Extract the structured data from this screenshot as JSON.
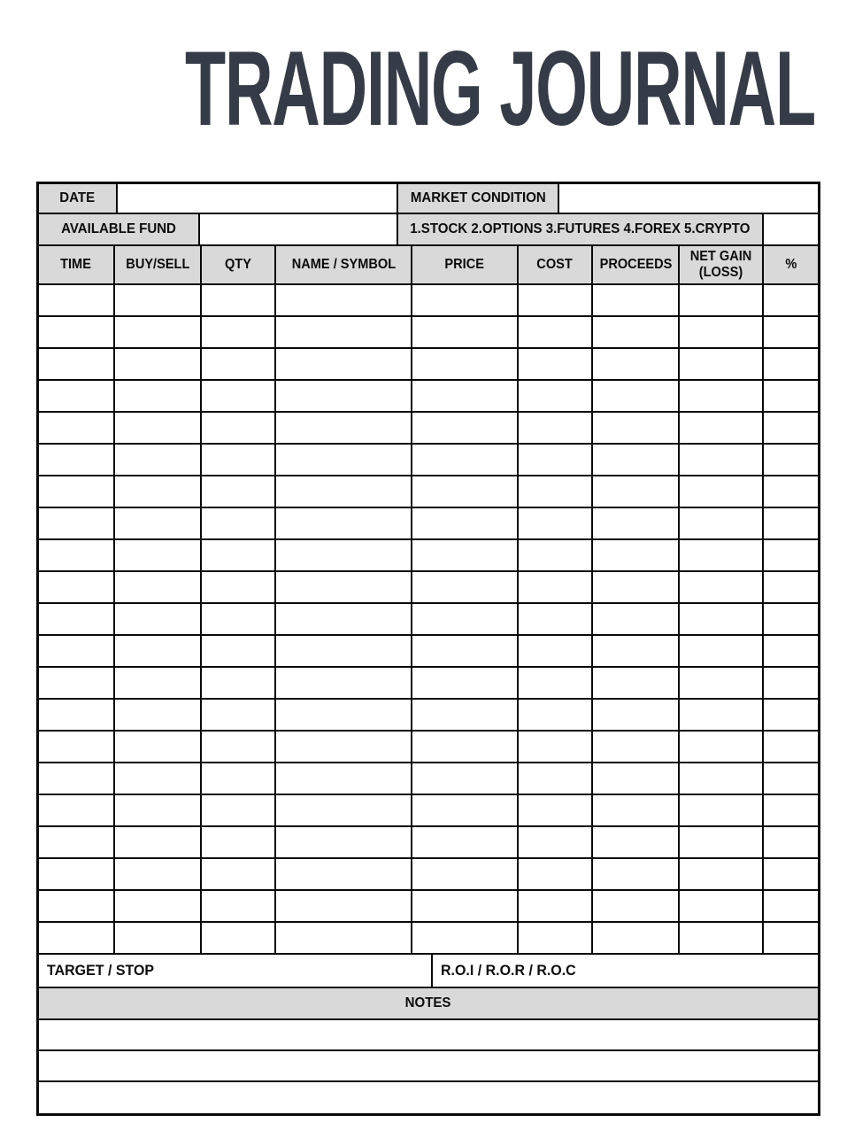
{
  "title": "TRADING JOURNAL",
  "form": {
    "date_label": "DATE",
    "date_value": "",
    "market_condition_label": "MARKET CONDITION",
    "market_condition_value": "",
    "available_fund_label": "AVAILABLE FUND",
    "available_fund_value": "",
    "instrument_options": "1.STOCK 2.OPTIONS 3.FUTURES 4.FOREX 5.CRYPTO",
    "instrument_choice_value": ""
  },
  "table": {
    "columns": [
      "TIME",
      "BUY/SELL",
      "QTY",
      "NAME / SYMBOL",
      "PRICE",
      "COST",
      "PROCEEDS",
      "NET GAIN (LOSS)",
      "%"
    ],
    "rows": 21
  },
  "footer": {
    "target_stop_label": "TARGET / STOP",
    "roi_label": "R.O.I / R.O.R / R.O.C",
    "notes_label": "NOTES",
    "notes_lines": 3
  },
  "colors": {
    "header_fill": "#d9d9d9",
    "border": "#0a0a0a",
    "title": "#363c47"
  }
}
